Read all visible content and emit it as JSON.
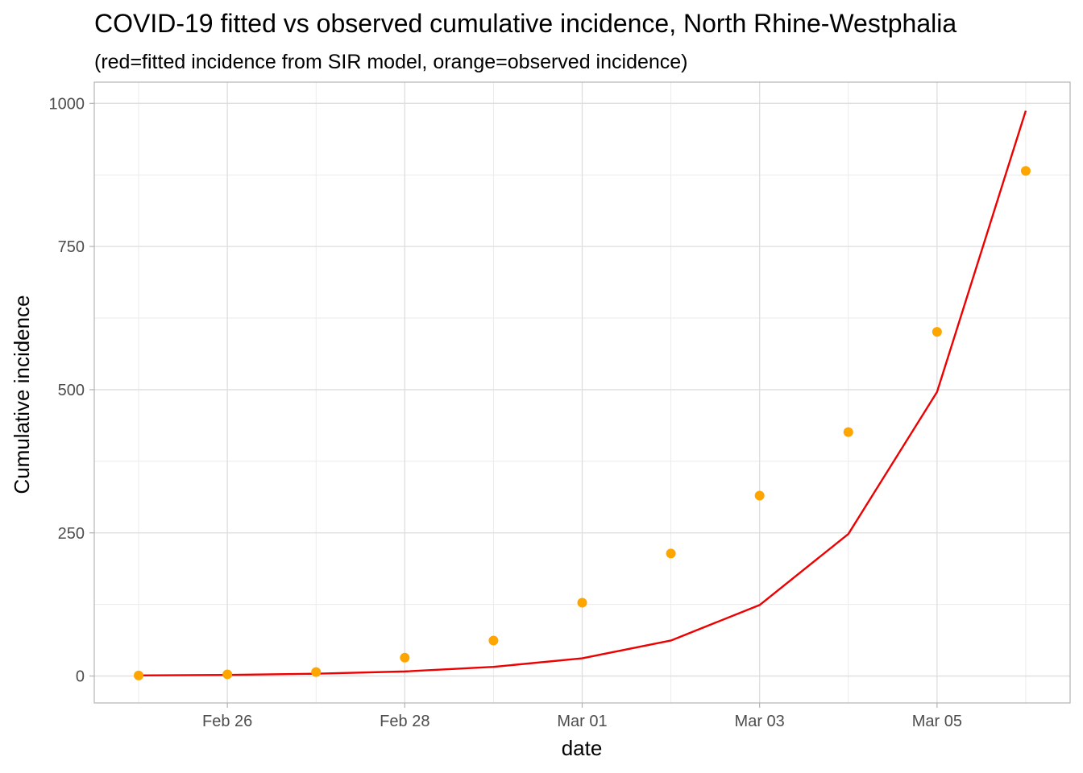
{
  "chart_data": {
    "type": "line",
    "title": "COVID-19 fitted vs observed cumulative incidence, North Rhine-Westphalia",
    "subtitle": "(red=fitted incidence from SIR model, orange=observed incidence)",
    "xlabel": "date",
    "ylabel": "Cumulative incidence",
    "x": [
      "2020-02-25",
      "2020-02-26",
      "2020-02-27",
      "2020-02-28",
      "2020-02-29",
      "2020-03-01",
      "2020-03-02",
      "2020-03-03",
      "2020-03-04",
      "2020-03-05",
      "2020-03-06"
    ],
    "x_ticks": [
      {
        "date": "2020-02-26",
        "label": "Feb 26"
      },
      {
        "date": "2020-02-28",
        "label": "Feb 28"
      },
      {
        "date": "2020-03-01",
        "label": "Mar 01"
      },
      {
        "date": "2020-03-03",
        "label": "Mar 03"
      },
      {
        "date": "2020-03-05",
        "label": "Mar 05"
      }
    ],
    "y_ticks": [
      0,
      250,
      500,
      750,
      1000
    ],
    "ylim": [
      -47,
      1037
    ],
    "xlim": [
      "2020-02-24T12:00",
      "2020-03-06T12:00"
    ],
    "grid": true,
    "series": [
      {
        "style": "line",
        "color": "#ee0000",
        "values": [
          1,
          2,
          4,
          8,
          16,
          31,
          62,
          124,
          248,
          496,
          987
        ]
      },
      {
        "style": "points",
        "color": "#ffa500",
        "values": [
          1,
          3,
          7,
          32,
          62,
          128,
          214,
          315,
          426,
          601,
          882
        ]
      }
    ]
  }
}
